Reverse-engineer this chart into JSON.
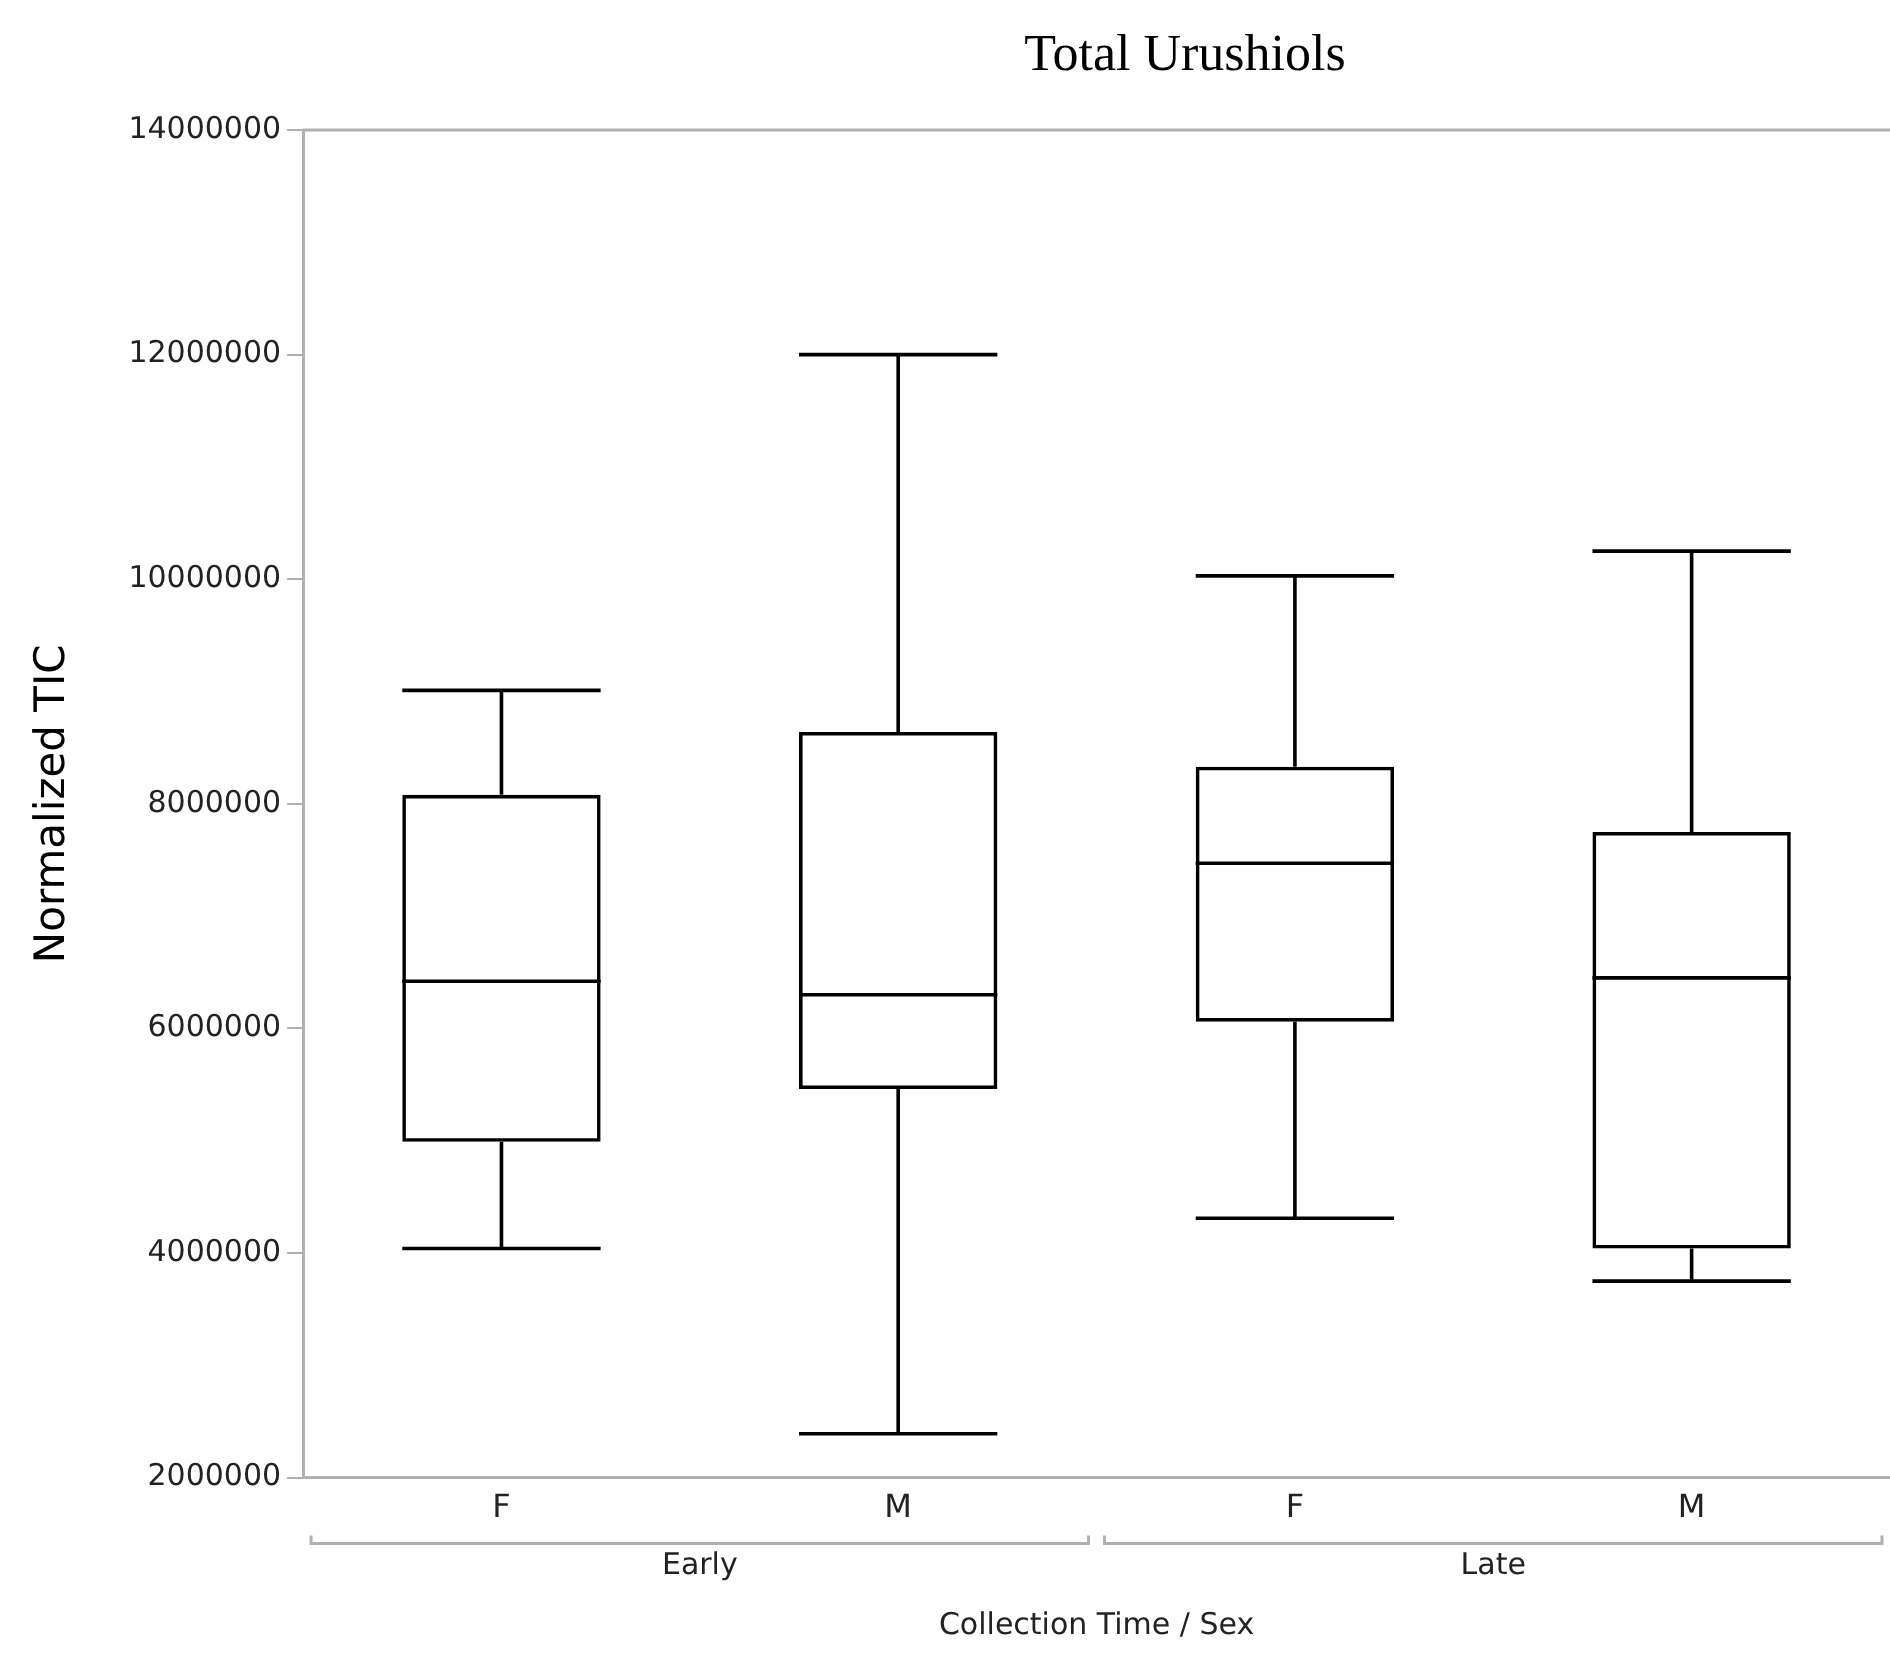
{
  "chart_data": {
    "type": "box",
    "title": "Total Urushiols",
    "xlabel": "Collection Time / Sex",
    "ylabel": "Normalized TIC",
    "categories": [
      "F",
      "M",
      "F",
      "M"
    ],
    "boxes": [
      {
        "low": 4040000,
        "q1": 4990000,
        "median": 6420000,
        "q3": 8080000,
        "high": 9010000
      },
      {
        "low": 2390000,
        "q1": 5460000,
        "median": 6300000,
        "q3": 8640000,
        "high": 12000000
      },
      {
        "low": 4310000,
        "q1": 6060000,
        "median": 7470000,
        "q3": 8330000,
        "high": 10030000
      },
      {
        "low": 3750000,
        "q1": 4040000,
        "median": 6450000,
        "q3": 7750000,
        "high": 10250000
      }
    ],
    "color": "#000000",
    "ylim": [
      2000000,
      14000000
    ],
    "yticks": [
      2000000,
      4000000,
      6000000,
      8000000,
      10000000,
      12000000,
      14000000
    ],
    "grid": false,
    "legend": false,
    "annotations": [
      "Early",
      "Late"
    ]
  }
}
